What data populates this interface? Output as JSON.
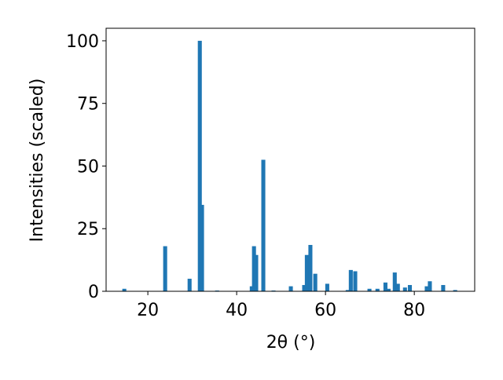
{
  "chart_data": {
    "type": "bar",
    "x_label": "2θ (°)",
    "y_label": "Intensities (scaled)",
    "x": [
      14.7,
      23.9,
      29.4,
      31.7,
      32.2,
      35.6,
      43.4,
      43.9,
      44.4,
      46.0,
      48.3,
      52.2,
      55.2,
      55.8,
      56.6,
      57.7,
      60.4,
      65.0,
      65.7,
      66.7,
      69.9,
      71.7,
      73.5,
      74.2,
      75.6,
      76.3,
      77.9,
      79.0,
      82.8,
      83.5,
      86.5,
      89.2
    ],
    "values": [
      1,
      18,
      5,
      100,
      34.5,
      0.3,
      2,
      18,
      14.5,
      52.5,
      0.3,
      2,
      2.5,
      14.5,
      18.5,
      7,
      3,
      0.5,
      8.5,
      8,
      1,
      1,
      3.5,
      1,
      7.5,
      3,
      1.5,
      2.5,
      2,
      4,
      2.5,
      0.5
    ],
    "color": "#1f77b4",
    "xlim": [
      10.6,
      93.6
    ],
    "xticks": [
      20,
      40,
      60,
      80
    ],
    "ylim": [
      0,
      105
    ],
    "yticks": [
      0,
      25,
      50,
      75,
      100
    ],
    "bar_width": 0.9
  }
}
